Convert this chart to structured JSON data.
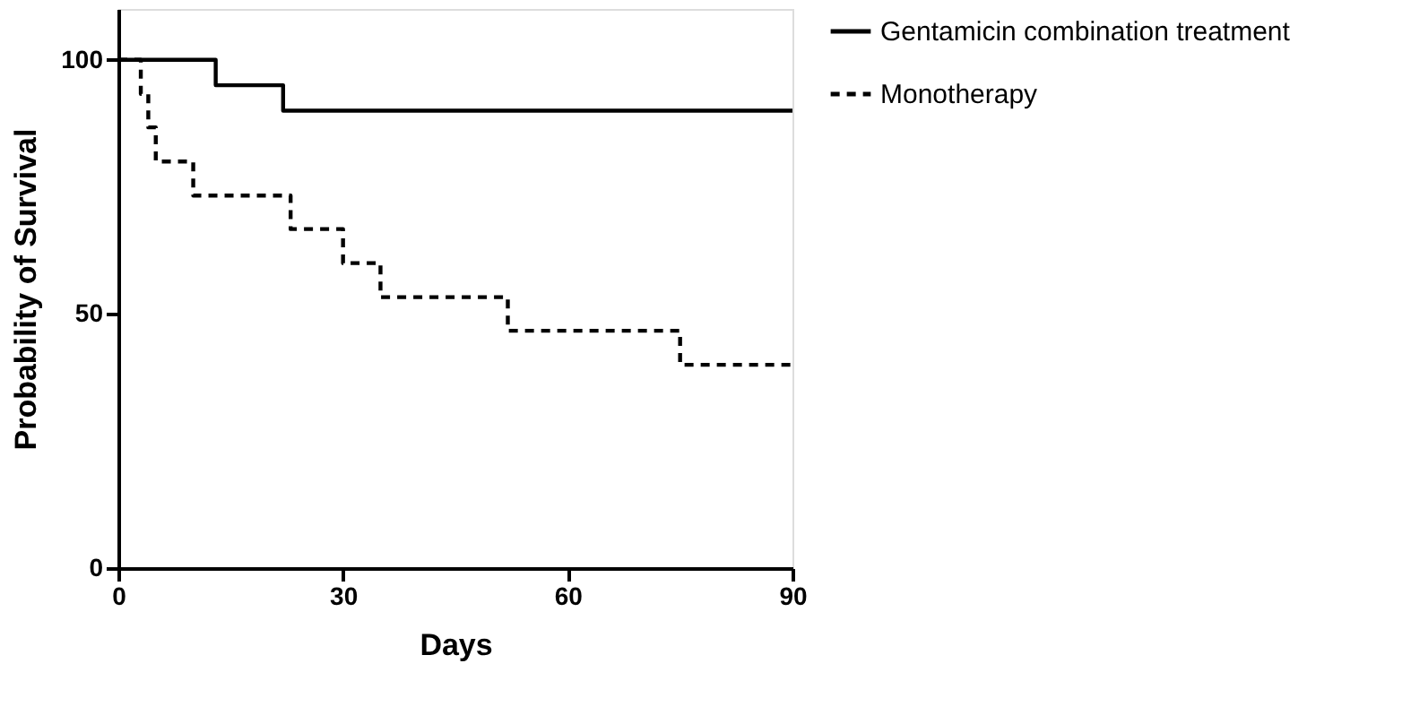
{
  "chart_data": {
    "type": "step",
    "xlabel": "Days",
    "ylabel": "Probability of Survival",
    "xlim": [
      0,
      90
    ],
    "ylim": [
      0,
      110
    ],
    "xticks": [
      0,
      30,
      60,
      90
    ],
    "yticks": [
      0,
      50,
      100
    ],
    "grid": false,
    "legend": "top right",
    "marker": "none",
    "series": [
      {
        "name": "Gentamicin combination treatment",
        "color": "#000000",
        "line_style": "solid",
        "x": [
          0,
          13,
          22,
          90
        ],
        "values": [
          100,
          95,
          90,
          90
        ]
      },
      {
        "name": "Monotherapy",
        "color": "#000000",
        "line_style": "dashed",
        "x": [
          0,
          3,
          4,
          5,
          10,
          23,
          30,
          35,
          52,
          75,
          90
        ],
        "values": [
          100,
          93.3,
          86.7,
          80,
          73.3,
          66.7,
          60,
          53.3,
          46.7,
          40,
          40
        ]
      }
    ]
  }
}
